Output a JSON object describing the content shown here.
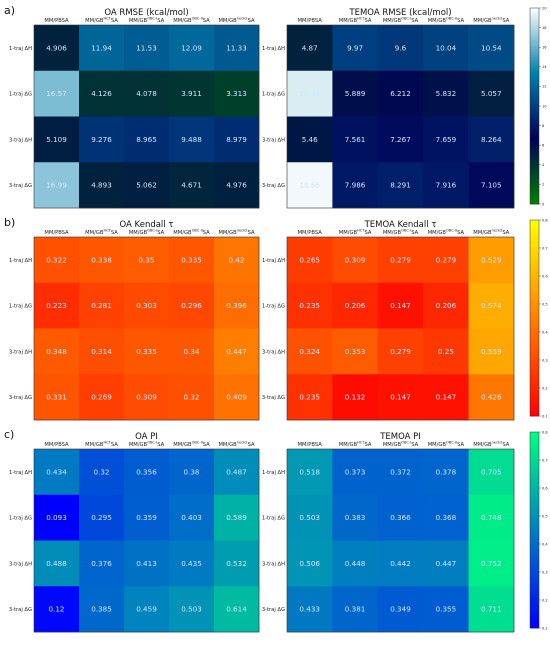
{
  "chart_data": [
    {
      "type": "heatmap",
      "panel_label": "a)",
      "colormap": "ocean",
      "colorbar": {
        "min": 0,
        "max": 20,
        "ticks": [
          0,
          2,
          4,
          6,
          8,
          10,
          12,
          14,
          16,
          18,
          20
        ]
      },
      "charts": [
        {
          "title": "OA RMSE (kcal/mol)",
          "columns": [
            "MM/PBSA",
            "MM/GB^{HCT}SA",
            "MM/GB^{OBC-I}SA",
            "MM/GB^{OBC-II}SA",
            "MM/GB^{neck2}SA"
          ],
          "rows": [
            "1-traj ΔH",
            "1-traj ΔG",
            "3-traj ΔH",
            "3-traj ΔG"
          ],
          "values": [
            [
              4.906,
              11.94,
              11.53,
              12.09,
              11.33
            ],
            [
              16.57,
              4.126,
              4.078,
              3.911,
              3.313
            ],
            [
              5.109,
              9.276,
              8.965,
              9.488,
              8.979
            ],
            [
              16.99,
              4.893,
              5.062,
              4.671,
              4.976
            ]
          ]
        },
        {
          "title": "TEMOA RMSE (kcal/mol)",
          "columns": [
            "MM/PBSA",
            "MM/GB^{HCT}SA",
            "MM/GB^{OBC-I}SA",
            "MM/GB^{OBC-II}SA",
            "MM/GB^{neck2}SA"
          ],
          "rows": [
            "1-traj ΔH",
            "1-traj ΔG",
            "3-traj ΔH",
            "3-traj ΔG"
          ],
          "values": [
            [
              4.87,
              9.97,
              9.6,
              10.04,
              10.54
            ],
            [
              19.04,
              5.889,
              6.212,
              5.832,
              5.057
            ],
            [
              5.46,
              7.561,
              7.267,
              7.659,
              8.264
            ],
            [
              19.66,
              7.986,
              8.291,
              7.916,
              7.105
            ]
          ]
        }
      ]
    },
    {
      "type": "heatmap",
      "panel_label": "b)",
      "colormap": "autumn",
      "colorbar": {
        "min": 0.1,
        "max": 0.8,
        "ticks": [
          0.1,
          0.2,
          0.3,
          0.4,
          0.5,
          0.6,
          0.7,
          0.8
        ]
      },
      "charts": [
        {
          "title": "OA Kendall τ",
          "columns": [
            "MM/PBSA",
            "MM/GB^{HCT}SA",
            "MM/GB^{OBC-I}SA",
            "MM/GB^{OBC-II}SA",
            "MM/GB^{neck2}SA"
          ],
          "rows": [
            "1-traj ΔH",
            "1-traj ΔG",
            "3-traj ΔH",
            "3-traj ΔG"
          ],
          "values": [
            [
              0.322,
              0.338,
              0.35,
              0.335,
              0.42
            ],
            [
              0.223,
              0.281,
              0.303,
              0.296,
              0.396
            ],
            [
              0.348,
              0.314,
              0.335,
              0.34,
              0.447
            ],
            [
              0.331,
              0.269,
              0.309,
              0.32,
              0.409
            ]
          ]
        },
        {
          "title": "TEMOA Kendall τ",
          "columns": [
            "MM/PBSA",
            "MM/GB^{HCT}SA",
            "MM/GB^{OBC-I}SA",
            "MM/GB^{OBC-II}SA",
            "MM/GB^{neck2}SA"
          ],
          "rows": [
            "1-traj ΔH",
            "1-traj ΔG",
            "3-traj ΔH",
            "3-traj ΔG"
          ],
          "values": [
            [
              0.265,
              0.309,
              0.279,
              0.279,
              0.529
            ],
            [
              0.235,
              0.206,
              0.147,
              0.206,
              0.574
            ],
            [
              0.324,
              0.353,
              0.279,
              0.25,
              0.559
            ],
            [
              0.235,
              0.132,
              0.147,
              0.147,
              0.426
            ]
          ]
        }
      ]
    },
    {
      "type": "heatmap",
      "panel_label": "c)",
      "colormap": "winter",
      "colorbar": {
        "min": 0.1,
        "max": 0.8,
        "ticks": [
          0.1,
          0.2,
          0.3,
          0.4,
          0.5,
          0.6,
          0.7,
          0.8
        ]
      },
      "charts": [
        {
          "title": "OA PI",
          "columns": [
            "MM/PBSA",
            "MM/GB^{HCT}SA",
            "MM/GB^{OBC-I}SA",
            "MM/GB^{OBC-II}SA",
            "MM/GB^{neck2}SA"
          ],
          "rows": [
            "1-traj ΔH",
            "1-traj ΔG",
            "3-traj ΔH",
            "3-traj ΔG"
          ],
          "values": [
            [
              0.434,
              0.32,
              0.356,
              0.38,
              0.487
            ],
            [
              0.093,
              0.295,
              0.359,
              0.403,
              0.589
            ],
            [
              0.488,
              0.376,
              0.413,
              0.435,
              0.532
            ],
            [
              0.12,
              0.385,
              0.459,
              0.503,
              0.614
            ]
          ]
        },
        {
          "title": "TEMOA PI",
          "columns": [
            "MM/PBSA",
            "MM/GB^{HCT}SA",
            "MM/GB^{OBC-I}SA",
            "MM/GB^{OBC-II}SA",
            "MM/GB^{neck2}SA"
          ],
          "rows": [
            "1-traj ΔH",
            "1-traj ΔG",
            "3-traj ΔH",
            "3-traj ΔG"
          ],
          "values": [
            [
              0.518,
              0.373,
              0.372,
              0.378,
              0.705
            ],
            [
              0.503,
              0.383,
              0.366,
              0.368,
              0.748
            ],
            [
              0.506,
              0.448,
              0.442,
              0.447,
              0.752
            ],
            [
              0.433,
              0.381,
              0.349,
              0.355,
              0.711
            ]
          ]
        }
      ]
    }
  ]
}
